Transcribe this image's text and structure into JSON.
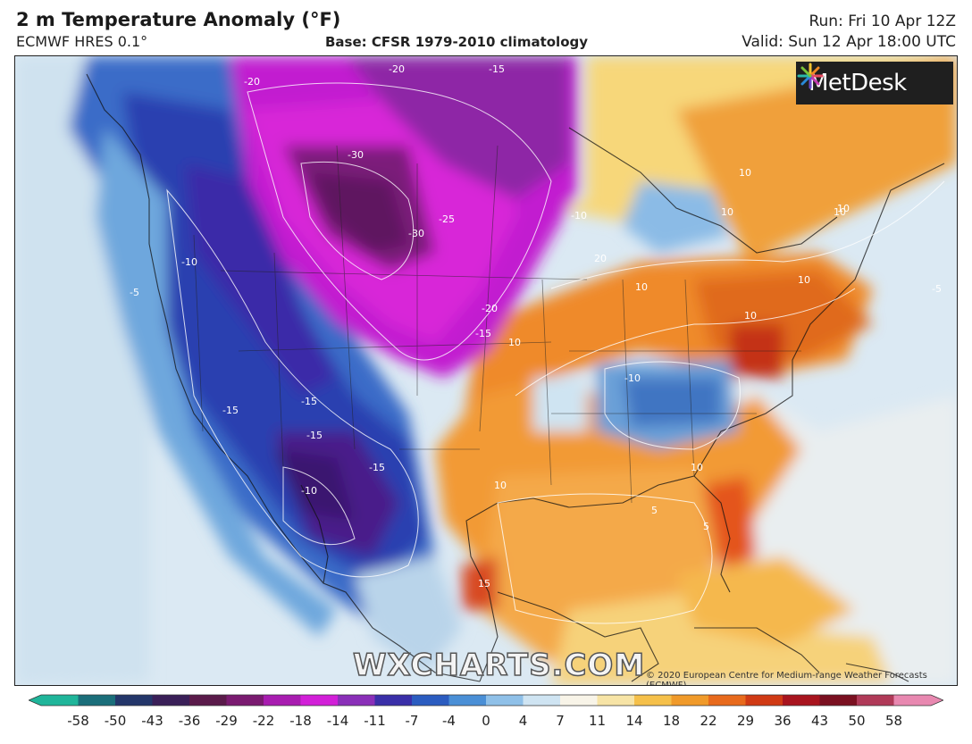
{
  "header": {
    "title": "2 m Temperature Anomaly (°F)",
    "model": "ECMWF HRES 0.1°",
    "base": "Base: CFSR 1979-2010 climatology",
    "run": "Run: Fri 10 Apr 12Z",
    "valid": "Valid: Sun 12 Apr 18:00 UTC"
  },
  "logo": {
    "text": "MetDesk",
    "icon": "metdesk-burst-icon"
  },
  "watermark": "WXCHARTS.COM",
  "copyright": "© 2020 European Centre for Medium-range Weather Forecasts (ECMWF)",
  "contour_labels": [
    {
      "text": "-20"
    },
    {
      "text": "-15"
    },
    {
      "text": "-20"
    },
    {
      "text": "-30"
    },
    {
      "text": "-25"
    },
    {
      "text": "-30"
    },
    {
      "text": "-10"
    },
    {
      "text": "-20"
    },
    {
      "text": "-15"
    },
    {
      "text": "-10"
    },
    {
      "text": "-15"
    },
    {
      "text": "-15"
    },
    {
      "text": "-15"
    },
    {
      "text": "-15"
    },
    {
      "text": "-10"
    },
    {
      "text": "-10"
    },
    {
      "text": "-5"
    },
    {
      "text": "10"
    },
    {
      "text": "10"
    },
    {
      "text": "10"
    },
    {
      "text": "10"
    },
    {
      "text": "10"
    },
    {
      "text": "20"
    },
    {
      "text": "10"
    },
    {
      "text": "10"
    },
    {
      "text": "10"
    },
    {
      "text": "5"
    },
    {
      "text": "10"
    },
    {
      "text": "15"
    },
    {
      "text": "-5"
    },
    {
      "text": "10"
    },
    {
      "text": "5"
    }
  ],
  "colorbar": {
    "labels": [
      "-58",
      "-50",
      "-43",
      "-36",
      "-29",
      "-22",
      "-18",
      "-14",
      "-11",
      "-7",
      "-4",
      "0",
      "4",
      "7",
      "11",
      "14",
      "18",
      "22",
      "29",
      "36",
      "43",
      "50",
      "58"
    ],
    "colors": [
      "#1fb59a",
      "#1a6e7a",
      "#23366a",
      "#3a1f58",
      "#5a1a4a",
      "#7a1a70",
      "#a81cb0",
      "#d21fd8",
      "#8a2fb8",
      "#3a2fa8",
      "#2b5cc0",
      "#4a8fd6",
      "#8fc0e8",
      "#cfe4f2",
      "#f8f4e8",
      "#f7e4a6",
      "#f5c04a",
      "#f09a2a",
      "#e86a1c",
      "#d03a14",
      "#a8141e",
      "#7a1020",
      "#b03a58",
      "#e888b0"
    ]
  }
}
